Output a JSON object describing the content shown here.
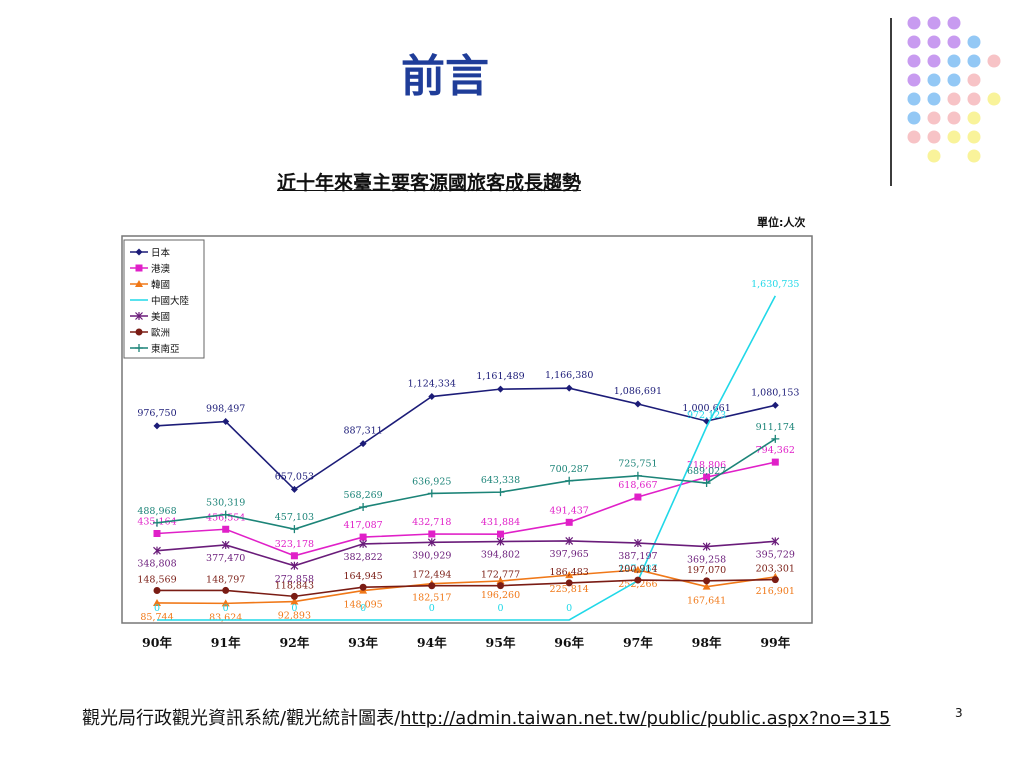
{
  "slide": {
    "title": "前言",
    "page_number": "3",
    "footer_text": "觀光局行政觀光資訊系統/觀光統計圖表/",
    "footer_link": "http://admin.taiwan.net.tw/public/public.aspx?no=315"
  },
  "decor": {
    "dot_colors": {
      "purple": "#c89bf0",
      "blue": "#93c8f5",
      "pink": "#f7c3c6",
      "yellow": "#f9f39a"
    }
  },
  "chart_data": {
    "type": "line",
    "title": "近十年來臺主要客源國旅客成長趨勢",
    "unit_label": "單位:人次",
    "categories": [
      "90年",
      "91年",
      "92年",
      "93年",
      "94年",
      "95年",
      "96年",
      "97年",
      "98年",
      "99年"
    ],
    "ylim": [
      0,
      1700000
    ],
    "legend_position": "top-left",
    "grid": false,
    "series": [
      {
        "name": "日本",
        "color": "#1c1c78",
        "marker": "diamond",
        "values": [
          976750,
          998497,
          657053,
          887311,
          1124334,
          1161489,
          1166380,
          1086691,
          1000661,
          1080153
        ],
        "labels": [
          "976,750",
          "998,497",
          "657,053",
          "887,311",
          "1,124,334",
          "1,161,489",
          "1,166,380",
          "1,086,691",
          "1,000,661",
          "1,080,153"
        ]
      },
      {
        "name": "港澳",
        "color": "#e020c8",
        "marker": "square",
        "values": [
          435164,
          456554,
          323178,
          417087,
          432718,
          431884,
          491437,
          618667,
          718806,
          794362
        ],
        "labels": [
          "435,164",
          "456,554",
          "323,178",
          "417,087",
          "432,718",
          "431,884",
          "491,437",
          "618,667",
          "718,806",
          "794,362"
        ]
      },
      {
        "name": "韓國",
        "color": "#f07818",
        "marker": "triangle",
        "values": [
          85744,
          83624,
          92893,
          148095,
          182517,
          196260,
          225814,
          252266,
          167641,
          216901
        ],
        "labels": [
          "85,744",
          "83,624",
          "92,893",
          "148,095",
          "182,517",
          "196,260",
          "225,814",
          "252,266",
          "167,641",
          "216,901"
        ]
      },
      {
        "name": "中國大陸",
        "color": "#20d8e8",
        "marker": "none",
        "values": [
          0,
          0,
          0,
          0,
          0,
          0,
          0,
          197987,
          972123,
          1630735
        ],
        "labels": [
          "0",
          "0",
          "0",
          "0",
          "0",
          "0",
          "0",
          "197,987",
          "972,123",
          "1,630,735"
        ]
      },
      {
        "name": "美國",
        "color": "#6a1c7a",
        "marker": "star",
        "values": [
          348808,
          377470,
          272858,
          382822,
          390929,
          394802,
          397965,
          387197,
          369258,
          395729
        ],
        "labels": [
          "348,808",
          "377,470",
          "272,858",
          "382,822",
          "390,929",
          "394,802",
          "397,965",
          "387,197",
          "369,258",
          "395,729"
        ]
      },
      {
        "name": "歐洲",
        "color": "#7a1c14",
        "marker": "circle",
        "values": [
          148569,
          148797,
          118843,
          164945,
          172494,
          172777,
          186483,
          200914,
          197070,
          203301
        ],
        "labels": [
          "148,569",
          "148,797",
          "118,843",
          "164,945",
          "172,494",
          "172,777",
          "186,483",
          "200,914",
          "197,070",
          "203,301"
        ]
      },
      {
        "name": "東南亞",
        "color": "#1c8478",
        "marker": "plus",
        "values": [
          488968,
          530319,
          457103,
          568269,
          636925,
          643338,
          700287,
          725751,
          689027,
          911174
        ],
        "labels": [
          "488,968",
          "530,319",
          "457,103",
          "568,269",
          "636,925",
          "643,338",
          "700,287",
          "725,751",
          "689,027",
          "911,174"
        ]
      }
    ]
  }
}
